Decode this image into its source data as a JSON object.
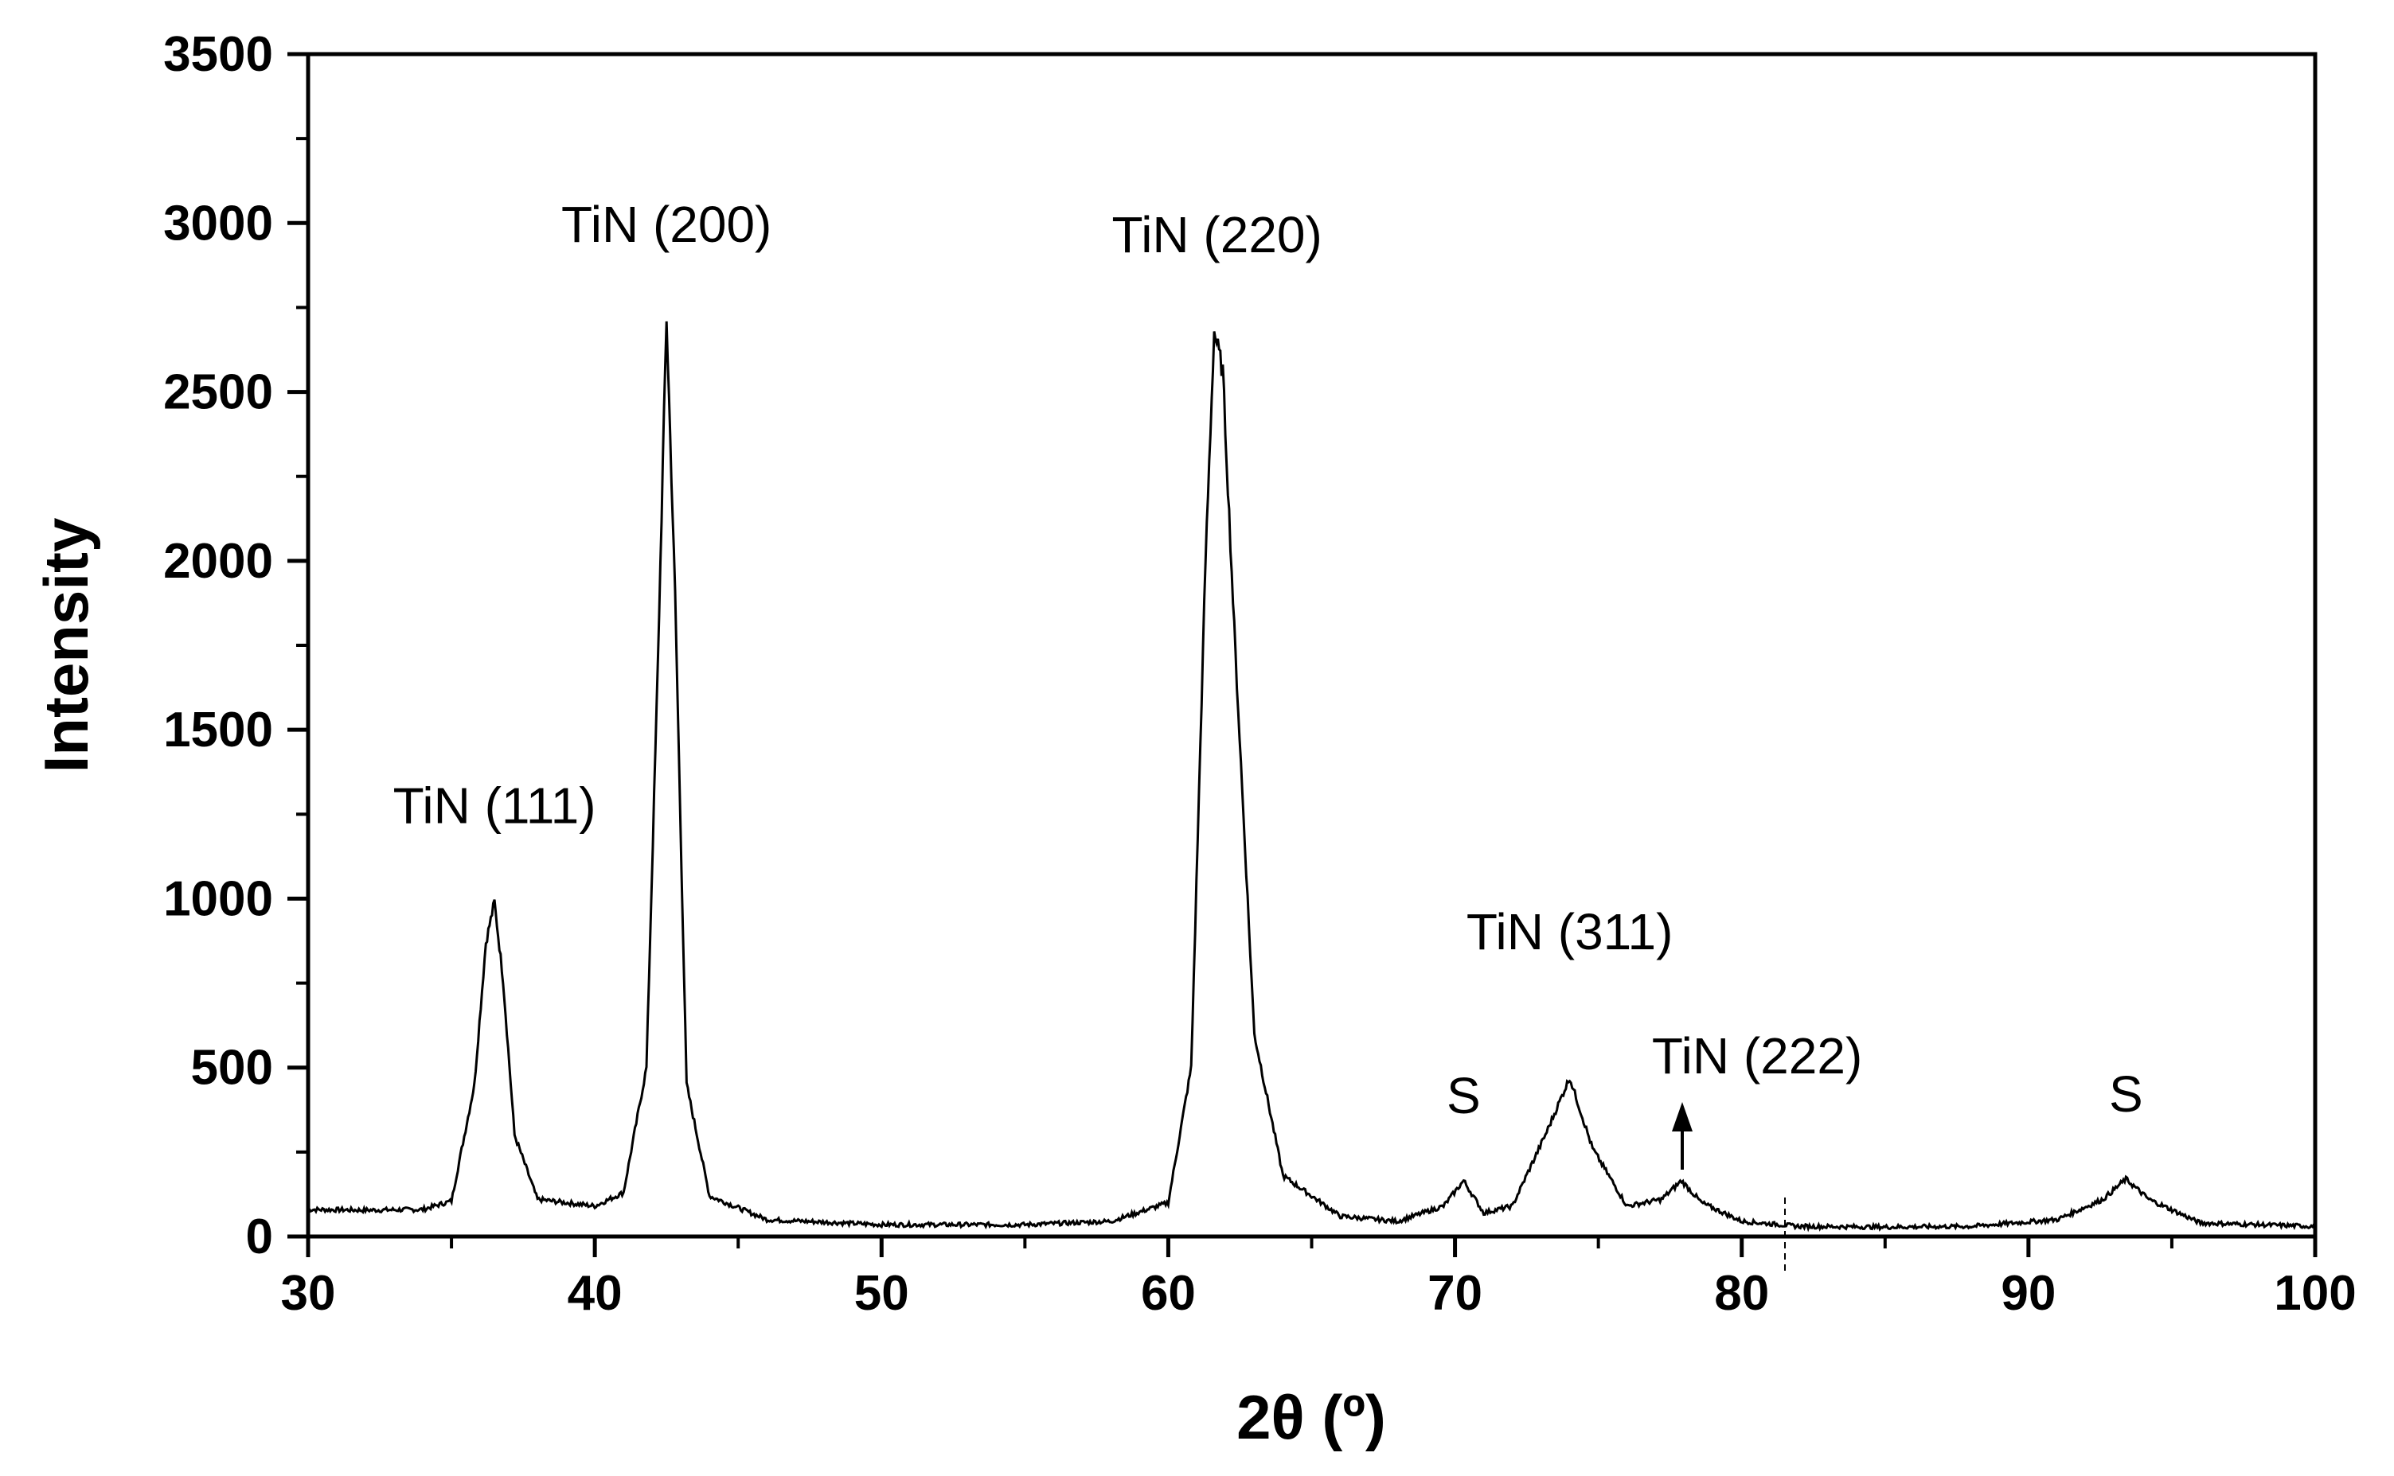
{
  "chart_data": {
    "type": "line",
    "title": "",
    "xlabel": "2θ (º)",
    "ylabel": "Intensity",
    "xlim": [
      30,
      100
    ],
    "ylim": [
      0,
      3500
    ],
    "x_ticks": [
      30,
      40,
      50,
      60,
      70,
      80,
      90,
      100
    ],
    "y_ticks": [
      0,
      500,
      1000,
      1500,
      2000,
      2500,
      3000,
      3500
    ],
    "grid": false,
    "legend": "none",
    "line_color": "#000000",
    "series": [
      {
        "name": "",
        "x": [
          30,
          32,
          34,
          35,
          35.8,
          36.2,
          36.5,
          36.8,
          37.2,
          38,
          40,
          41,
          41.8,
          42.2,
          42.5,
          42.8,
          43.2,
          44,
          46,
          50,
          55,
          58,
          60,
          60.8,
          61.3,
          61.6,
          61.9,
          62.3,
          63,
          64,
          66,
          68,
          69.6,
          70.3,
          71,
          72,
          73.2,
          74,
          74.8,
          76,
          77.2,
          77.9,
          78.6,
          80,
          82,
          85,
          88,
          91,
          92.6,
          93.4,
          94.2,
          96,
          100
        ],
        "y": [
          80,
          78,
          80,
          105,
          450,
          870,
          990,
          760,
          300,
          110,
          90,
          130,
          500,
          1700,
          2720,
          1900,
          450,
          120,
          50,
          35,
          35,
          45,
          100,
          500,
          2000,
          2680,
          2560,
          1800,
          600,
          180,
          60,
          45,
          90,
          165,
          70,
          90,
          310,
          470,
          260,
          90,
          110,
          165,
          100,
          45,
          30,
          28,
          30,
          50,
          110,
          170,
          110,
          40,
          30
        ]
      }
    ],
    "annotations": [
      {
        "text": "TiN (111)",
        "x": 36.5,
        "y": 1000
      },
      {
        "text": "TiN (200)",
        "x": 42.5,
        "y": 2720
      },
      {
        "text": "TiN (220)",
        "x": 61.7,
        "y": 2690
      },
      {
        "text": "S",
        "x": 70.3,
        "y": 165
      },
      {
        "text": "TiN (311)",
        "x": 74.0,
        "y": 520
      },
      {
        "text": "TiN (222)",
        "x": 77.9,
        "y": 165
      },
      {
        "text": "S",
        "x": 93.4,
        "y": 170
      }
    ]
  }
}
